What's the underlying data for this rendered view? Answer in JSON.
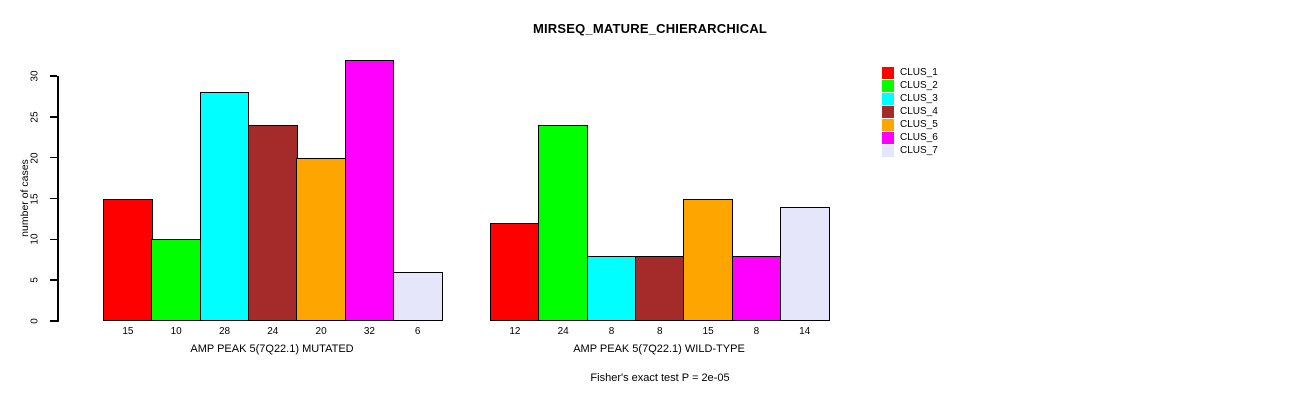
{
  "chart_data": {
    "type": "bar",
    "title": "MIRSEQ_MATURE_CHIERARCHICAL",
    "ylabel": "number of cases",
    "xlabel": "",
    "ylim": [
      0,
      32
    ],
    "y_ticks": [
      0,
      5,
      10,
      15,
      20,
      25,
      30
    ],
    "grid": false,
    "legend_position": "right-outside",
    "annotation": "Fisher's exact test P = 2e-05",
    "categories": [
      "AMP PEAK 5(7Q22.1) MUTATED",
      "AMP PEAK 5(7Q22.1) WILD-TYPE"
    ],
    "series": [
      {
        "name": "CLUS_1",
        "color": "#FF0000",
        "values": [
          15,
          12
        ]
      },
      {
        "name": "CLUS_2",
        "color": "#00FF00",
        "values": [
          10,
          24
        ]
      },
      {
        "name": "CLUS_3",
        "color": "#00FFFF",
        "values": [
          28,
          8
        ]
      },
      {
        "name": "CLUS_4",
        "color": "#A52A2A",
        "values": [
          24,
          8
        ]
      },
      {
        "name": "CLUS_5",
        "color": "#FFA500",
        "values": [
          20,
          15
        ]
      },
      {
        "name": "CLUS_6",
        "color": "#FF00FF",
        "values": [
          32,
          8
        ]
      },
      {
        "name": "CLUS_7",
        "color": "#E6E6FA",
        "values": [
          6,
          14
        ]
      }
    ],
    "bar_value_labels_shown": true,
    "axis_color": "#000000",
    "bar_border_color": "#000000",
    "background_color": "#FFFFFF"
  }
}
